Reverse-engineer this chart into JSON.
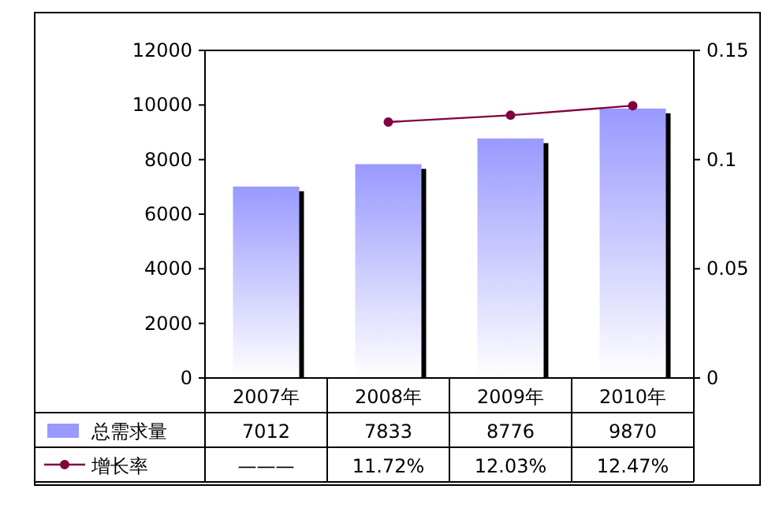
{
  "chart_data": {
    "type": "bar",
    "categories": [
      "2007年",
      "2008年",
      "2009年",
      "2010年"
    ],
    "ylim": [
      0,
      12000
    ],
    "yticks": [
      0,
      2000,
      4000,
      6000,
      8000,
      10000,
      12000
    ],
    "y2lim": [
      0,
      0.15
    ],
    "y2ticks": [
      0,
      0.05,
      0.1,
      0.15
    ],
    "legend": "bottom",
    "grid": false,
    "marker": "circle",
    "line_style": "solid",
    "series": [
      {
        "name": "总需求量",
        "color": "#9999ff",
        "values": [
          7012,
          7833,
          8776,
          9870
        ],
        "value_labels": [
          "7012",
          "7833",
          "8776",
          "9870"
        ]
      },
      {
        "name": "增长率",
        "type": "line",
        "axis": "y2",
        "color": "#800040",
        "values": [
          null,
          0.1172,
          0.1203,
          0.1247
        ],
        "value_labels": [
          "———",
          "11.72%",
          "12.03%",
          "12.47%"
        ]
      }
    ]
  }
}
